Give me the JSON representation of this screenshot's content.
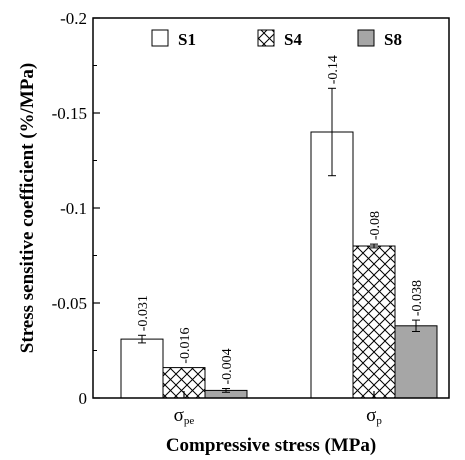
{
  "chart_data": {
    "type": "bar",
    "categories": [
      "σpe",
      "σp"
    ],
    "category_parts": [
      {
        "main": "σ",
        "sub": "pe"
      },
      {
        "main": "σ",
        "sub": "p"
      }
    ],
    "series": [
      {
        "name": "S1",
        "values": [
          -0.031,
          -0.14
        ],
        "errors": [
          0.002,
          0.023
        ],
        "data_labels": [
          "-0.031",
          "-0.14"
        ],
        "color": "#ffffff",
        "pattern": "none"
      },
      {
        "name": "S4",
        "values": [
          -0.016,
          -0.08
        ],
        "errors": [
          0.0,
          0.001
        ],
        "data_labels": [
          "-0.016",
          "-0.08"
        ],
        "color": "#ffffff",
        "pattern": "crosshatch"
      },
      {
        "name": "S8",
        "values": [
          -0.004,
          -0.038
        ],
        "errors": [
          0.001,
          0.003
        ],
        "data_labels": [
          "-0.004",
          "-0.038"
        ],
        "color": "#a6a6a6",
        "pattern": "none"
      }
    ],
    "xlabel": "Compressive stress (MPa)",
    "ylabel": "Stress sensitive coefficient (%/MPa)",
    "ylim": [
      0,
      -0.2
    ],
    "yticks": [
      0,
      -0.05,
      -0.1,
      -0.15,
      -0.2
    ],
    "ytick_labels": [
      "0",
      "-0.05",
      "-0.1",
      "-0.15",
      "-0.2"
    ],
    "legend_position": "top",
    "grid": false
  }
}
